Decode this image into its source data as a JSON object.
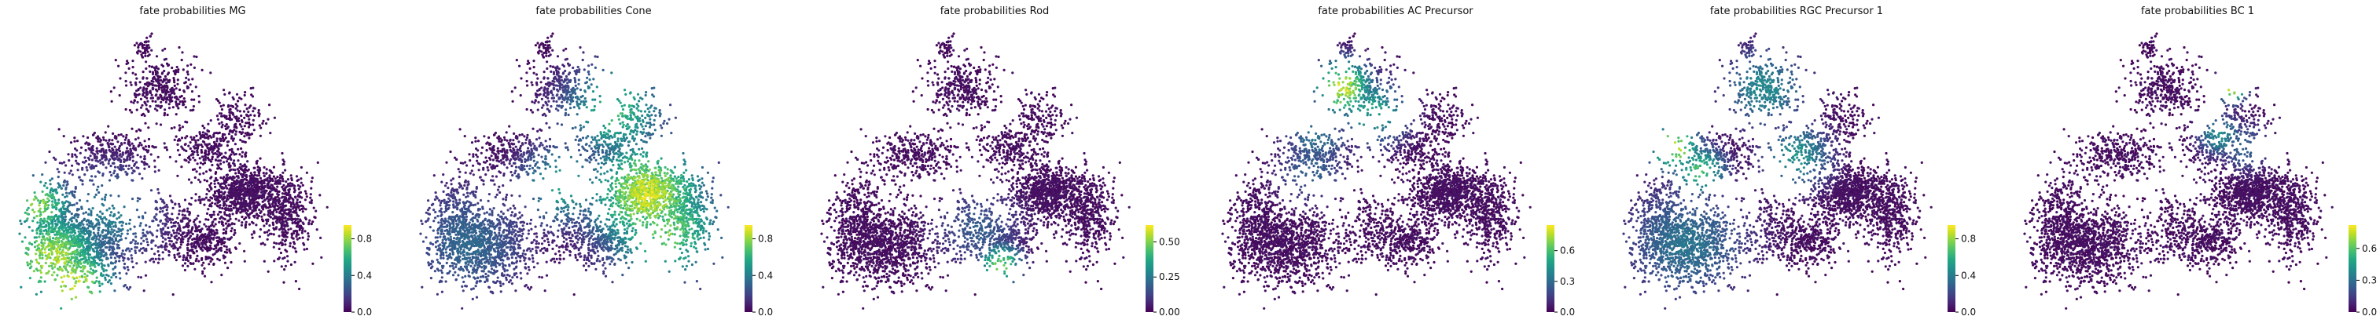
{
  "chart_data": [
    {
      "type": "scatter",
      "title": "fate probabilities MG",
      "colormap": "viridis",
      "colorbar": {
        "range": [
          0.0,
          0.95
        ],
        "ticks": [
          0.0,
          0.4,
          0.8
        ],
        "tick_labels": [
          "0.0",
          "0.4",
          "0.8"
        ]
      },
      "hotspots": [
        {
          "x": 0.1,
          "y": 0.2,
          "value": 0.92,
          "spread": 0.12
        },
        {
          "x": 0.17,
          "y": 0.12,
          "value": 0.95,
          "spread": 0.1
        },
        {
          "x": 0.06,
          "y": 0.38,
          "value": 0.85,
          "spread": 0.08
        },
        {
          "x": 0.28,
          "y": 0.35,
          "value": 0.45,
          "spread": 0.12
        }
      ],
      "axes": {
        "visible": false,
        "frame": false
      }
    },
    {
      "type": "scatter",
      "title": "fate probabilities Cone",
      "colormap": "viridis",
      "colorbar": {
        "range": [
          0.0,
          0.95
        ],
        "ticks": [
          0.0,
          0.4,
          0.8
        ],
        "tick_labels": [
          "0.0",
          "0.4",
          "0.8"
        ]
      },
      "hotspots": [
        {
          "x": 0.72,
          "y": 0.42,
          "value": 0.95,
          "spread": 0.14
        },
        {
          "x": 0.78,
          "y": 0.3,
          "value": 0.8,
          "spread": 0.14
        },
        {
          "x": 0.62,
          "y": 0.7,
          "value": 0.7,
          "spread": 0.12
        },
        {
          "x": 0.15,
          "y": 0.25,
          "value": 0.35,
          "spread": 0.15
        },
        {
          "x": 0.45,
          "y": 0.45,
          "value": 0.6,
          "spread": 0.1
        }
      ],
      "axes": {
        "visible": false,
        "frame": false
      }
    },
    {
      "type": "scatter",
      "title": "fate probabilities Rod",
      "colormap": "viridis",
      "colorbar": {
        "range": [
          0.0,
          0.62
        ],
        "ticks": [
          0.0,
          0.25,
          0.5
        ],
        "tick_labels": [
          "0.00",
          "0.25",
          "0.50"
        ]
      },
      "hotspots": [
        {
          "x": 0.57,
          "y": 0.18,
          "value": 0.55,
          "spread": 0.05
        },
        {
          "x": 0.5,
          "y": 0.3,
          "value": 0.2,
          "spread": 0.1
        }
      ],
      "axes": {
        "visible": false,
        "frame": false
      }
    },
    {
      "type": "scatter",
      "title": "fate probabilities AC Precursor",
      "colormap": "viridis",
      "colorbar": {
        "range": [
          0.0,
          0.85
        ],
        "ticks": [
          0.0,
          0.3,
          0.6
        ],
        "tick_labels": [
          "0.0",
          "0.3",
          "0.6"
        ]
      },
      "hotspots": [
        {
          "x": 0.38,
          "y": 0.78,
          "value": 0.85,
          "spread": 0.07
        },
        {
          "x": 0.48,
          "y": 0.7,
          "value": 0.55,
          "spread": 0.08
        },
        {
          "x": 0.3,
          "y": 0.62,
          "value": 0.35,
          "spread": 0.08
        },
        {
          "x": 0.28,
          "y": 0.5,
          "value": 0.3,
          "spread": 0.08
        }
      ],
      "axes": {
        "visible": false,
        "frame": false
      }
    },
    {
      "type": "scatter",
      "title": "fate probabilities RGC Precursor 1",
      "colormap": "viridis",
      "colorbar": {
        "range": [
          0.0,
          0.95
        ],
        "ticks": [
          0.0,
          0.4,
          0.8
        ],
        "tick_labels": [
          "0.0",
          "0.4",
          "0.8"
        ]
      },
      "hotspots": [
        {
          "x": 0.16,
          "y": 0.58,
          "value": 0.95,
          "spread": 0.06
        },
        {
          "x": 0.24,
          "y": 0.5,
          "value": 0.75,
          "spread": 0.06
        },
        {
          "x": 0.2,
          "y": 0.25,
          "value": 0.4,
          "spread": 0.15
        },
        {
          "x": 0.45,
          "y": 0.78,
          "value": 0.5,
          "spread": 0.1
        },
        {
          "x": 0.55,
          "y": 0.55,
          "value": 0.55,
          "spread": 0.08
        }
      ],
      "axes": {
        "visible": false,
        "frame": false
      }
    },
    {
      "type": "scatter",
      "title": "fate probabilities BC 1",
      "colormap": "viridis",
      "colorbar": {
        "range": [
          0.0,
          0.82
        ],
        "ticks": [
          0.0,
          0.3,
          0.6
        ],
        "tick_labels": [
          "0.0",
          "0.3",
          "0.6"
        ]
      },
      "hotspots": [
        {
          "x": 0.66,
          "y": 0.78,
          "value": 0.82,
          "spread": 0.035
        },
        {
          "x": 0.62,
          "y": 0.62,
          "value": 0.45,
          "spread": 0.05
        },
        {
          "x": 0.7,
          "y": 0.58,
          "value": 0.3,
          "spread": 0.06
        }
      ],
      "axes": {
        "visible": false,
        "frame": false
      }
    }
  ]
}
